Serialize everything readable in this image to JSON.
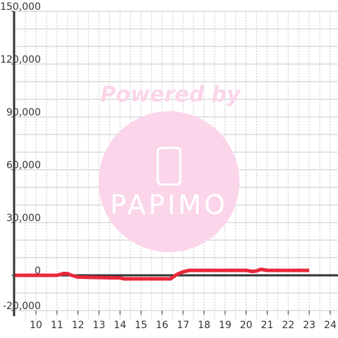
{
  "chart_data": {
    "type": "line",
    "watermark": [
      "Powered by",
      "PAPIMO"
    ],
    "x": [
      9,
      11,
      11.3,
      11.5,
      11.7,
      12,
      14,
      14.2,
      16.4,
      16.7,
      17,
      17.3,
      20,
      20.3,
      20.5,
      20.7,
      21,
      23
    ],
    "series": [
      {
        "color": "#e8283a",
        "values": [
          0,
          0,
          1000,
          1000,
          0,
          -1000,
          -1500,
          -2000,
          -2000,
          500,
          2000,
          2800,
          2800,
          2200,
          2500,
          3400,
          2800,
          2800
        ]
      }
    ],
    "xlim": [
      8.96,
      24.37
    ],
    "xticks": [
      10,
      11,
      12,
      13,
      14,
      15,
      16,
      17,
      18,
      19,
      20,
      21,
      22,
      23,
      24
    ],
    "xgrid": [
      9.5,
      10,
      10.5,
      11,
      11.5,
      12,
      12.5,
      13,
      13.5,
      14,
      14.5,
      15,
      15.5,
      16,
      16.5,
      17,
      17.5,
      18,
      18.5,
      19,
      19.5,
      20,
      20.5,
      21,
      21.5,
      22,
      22.5,
      23,
      23.5,
      24
    ],
    "ylim": [
      -20000,
      150000
    ],
    "yticks": [
      {
        "value": -20000,
        "label": "-20,000"
      },
      0,
      {
        "value": 30000,
        "label": "30,000"
      },
      {
        "value": 60000,
        "label": "60,000"
      },
      {
        "value": 90000,
        "label": "90,000"
      },
      {
        "value": 120000,
        "label": "120,000"
      },
      {
        "value": 150000,
        "label": "150,000"
      }
    ],
    "ygrid": [
      -20000,
      -10000,
      0,
      10000,
      20000,
      30000,
      40000,
      50000,
      60000,
      70000,
      80000,
      90000,
      100000,
      110000,
      120000,
      130000,
      140000,
      150000
    ]
  }
}
